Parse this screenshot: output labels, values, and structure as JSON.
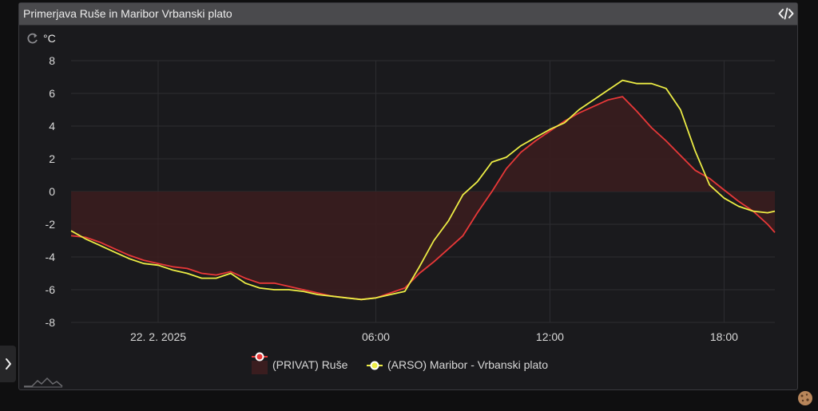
{
  "panel": {
    "title": "Primerjava Ruše in Maribor Vrbanski plato"
  },
  "icons": {
    "header_code": "code-icon",
    "refresh": "refresh-icon",
    "side_toggle": "chevron-right-icon",
    "logo": "mountain-logo-icon",
    "cookie": "cookie-icon"
  },
  "colors": {
    "background": "#1a1a1d",
    "header": "#4a4a4d",
    "grid": "#2d2d31",
    "private_series": "#e83838",
    "private_fill": "#3a1d1f",
    "arso_series": "#eded45"
  },
  "chart_data": {
    "type": "line",
    "unit_label": "°C",
    "xlabel": "",
    "ylabel": "",
    "ylim": [
      -8,
      8
    ],
    "yticks": [
      8,
      6,
      4,
      2,
      0,
      -2,
      -4,
      -6,
      -8
    ],
    "xlim": [
      -4.5,
      19.75
    ],
    "xticks": [
      {
        "value": -1.5,
        "label": "22. 2. 2025"
      },
      {
        "value": 6,
        "label": "06:00"
      },
      {
        "value": 12,
        "label": "12:00"
      },
      {
        "value": 18,
        "label": "18:00"
      }
    ],
    "legend_position": "bottom",
    "grid": true,
    "series": [
      {
        "name": "(PRIVAT) Ruše",
        "color": "#e83838",
        "fill_to_zero": true,
        "x": [
          -4.5,
          -4.0,
          -3.5,
          -3.0,
          -2.5,
          -2.0,
          -1.5,
          -1.0,
          -0.5,
          0.0,
          0.5,
          1.0,
          1.5,
          2.0,
          2.5,
          3.0,
          3.5,
          4.0,
          4.5,
          5.0,
          5.5,
          6.0,
          6.5,
          7.0,
          7.5,
          8.0,
          8.5,
          9.0,
          9.5,
          10.0,
          10.5,
          11.0,
          11.5,
          12.0,
          12.5,
          13.0,
          13.5,
          14.0,
          14.5,
          15.0,
          15.5,
          16.0,
          16.5,
          17.0,
          17.5,
          18.0,
          18.5,
          19.0,
          19.5,
          19.75
        ],
        "values": [
          -2.7,
          -2.8,
          -3.1,
          -3.5,
          -3.9,
          -4.2,
          -4.4,
          -4.6,
          -4.7,
          -5.0,
          -5.1,
          -4.9,
          -5.3,
          -5.6,
          -5.6,
          -5.8,
          -6.0,
          -6.2,
          -6.4,
          -6.5,
          -6.6,
          -6.5,
          -6.2,
          -5.9,
          -5.0,
          -4.3,
          -3.5,
          -2.7,
          -1.3,
          0.0,
          1.4,
          2.4,
          3.1,
          3.7,
          4.3,
          4.8,
          5.2,
          5.6,
          5.8,
          4.9,
          3.9,
          3.1,
          2.2,
          1.3,
          0.8,
          0.1,
          -0.6,
          -1.2,
          -2.0,
          -2.5
        ]
      },
      {
        "name": "(ARSO) Maribor - Vrbanski plato",
        "color": "#eded45",
        "fill_to_zero": false,
        "x": [
          -4.5,
          -4.0,
          -3.5,
          -3.0,
          -2.5,
          -2.0,
          -1.5,
          -1.0,
          -0.5,
          0.0,
          0.5,
          1.0,
          1.5,
          2.0,
          2.5,
          3.0,
          3.5,
          4.0,
          4.5,
          5.0,
          5.5,
          6.0,
          6.5,
          7.0,
          7.5,
          8.0,
          8.5,
          9.0,
          9.5,
          10.0,
          10.5,
          11.0,
          11.5,
          12.0,
          12.5,
          13.0,
          13.5,
          14.0,
          14.5,
          15.0,
          15.5,
          16.0,
          16.5,
          17.0,
          17.5,
          18.0,
          18.5,
          19.0,
          19.5,
          19.75
        ],
        "values": [
          -2.4,
          -2.9,
          -3.3,
          -3.7,
          -4.1,
          -4.4,
          -4.5,
          -4.8,
          -5.0,
          -5.3,
          -5.3,
          -5.0,
          -5.6,
          -5.9,
          -6.0,
          -6.0,
          -6.1,
          -6.3,
          -6.4,
          -6.5,
          -6.6,
          -6.5,
          -6.3,
          -6.1,
          -4.6,
          -3.0,
          -1.8,
          -0.2,
          0.6,
          1.8,
          2.1,
          2.8,
          3.3,
          3.8,
          4.2,
          5.0,
          5.6,
          6.2,
          6.8,
          6.6,
          6.6,
          6.3,
          5.0,
          2.5,
          0.4,
          -0.4,
          -0.9,
          -1.2,
          -1.3,
          -1.2
        ]
      }
    ]
  }
}
